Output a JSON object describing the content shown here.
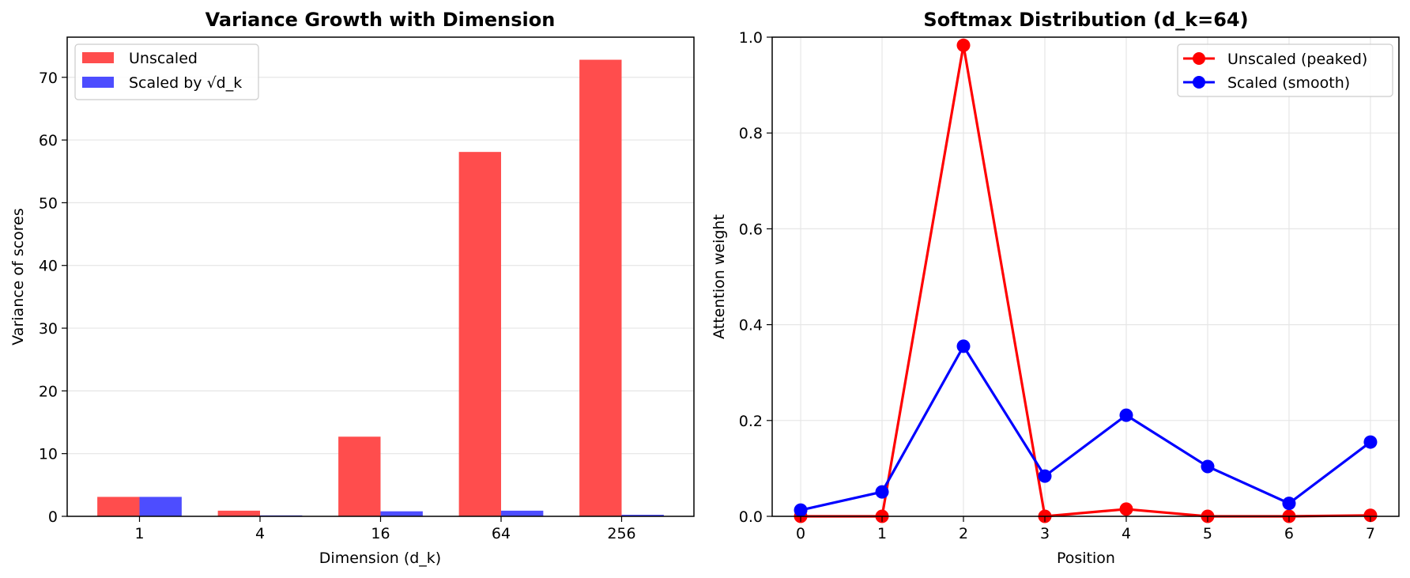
{
  "chart_data": [
    {
      "type": "bar",
      "title": "Variance Growth with Dimension",
      "xlabel": "Dimension (d_k)",
      "ylabel": "Variance of scores",
      "categories": [
        "1",
        "4",
        "16",
        "64",
        "256"
      ],
      "series": [
        {
          "name": "Unscaled",
          "color": "#ff4d4d",
          "values": [
            3.1,
            0.9,
            12.7,
            58.1,
            72.8
          ]
        },
        {
          "name": "Scaled by √d_k",
          "color": "#4d4dff",
          "values": [
            3.1,
            0.15,
            0.8,
            0.9,
            0.25
          ]
        }
      ],
      "ylim": [
        0,
        76.4
      ],
      "yticks": [
        0,
        10,
        20,
        30,
        40,
        50,
        60,
        70
      ],
      "grid": "y",
      "legend": "top-left"
    },
    {
      "type": "line",
      "title": "Softmax Distribution (d_k=64)",
      "xlabel": "Position",
      "ylabel": "Attention weight",
      "x": [
        0,
        1,
        2,
        3,
        4,
        5,
        6,
        7
      ],
      "series": [
        {
          "name": "Unscaled (peaked)",
          "color": "#ff0000",
          "values": [
            0.0,
            0.0,
            0.983,
            0.0,
            0.015,
            0.0,
            0.0,
            0.002
          ]
        },
        {
          "name": "Scaled (smooth)",
          "color": "#0000ff",
          "values": [
            0.013,
            0.051,
            0.355,
            0.084,
            0.211,
            0.104,
            0.027,
            0.155
          ]
        }
      ],
      "xlim": [
        -0.35,
        7.35
      ],
      "ylim": [
        0,
        1.0
      ],
      "xticks": [
        0,
        1,
        2,
        3,
        4,
        5,
        6,
        7
      ],
      "yticks": [
        "0.0",
        "0.2",
        "0.4",
        "0.6",
        "0.8",
        "1.0"
      ],
      "grid": "both",
      "legend": "top-right"
    }
  ]
}
